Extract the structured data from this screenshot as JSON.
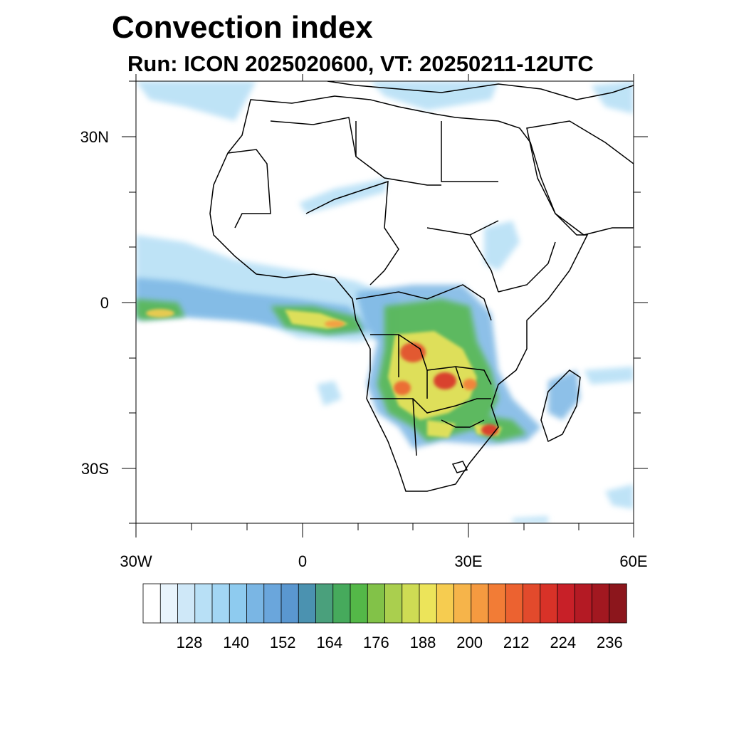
{
  "title": "Convection index",
  "subtitle": "Run: ICON 2025020600,  VT: 20250211-12UTC",
  "axes": {
    "y_ticks": [
      {
        "value": 30,
        "label": "30N"
      },
      {
        "value": 0,
        "label": "0"
      },
      {
        "value": -30,
        "label": "30S"
      }
    ],
    "x_ticks": [
      {
        "value": -30,
        "label": "30W"
      },
      {
        "value": 0,
        "label": "0"
      },
      {
        "value": 30,
        "label": "30E"
      },
      {
        "value": 60,
        "label": "60E"
      }
    ],
    "lon_range": [
      -30,
      60
    ],
    "lat_range": [
      -40,
      40
    ]
  },
  "colorbar": {
    "labels": [
      "128",
      "140",
      "152",
      "164",
      "176",
      "188",
      "200",
      "212",
      "224",
      "236"
    ],
    "colors": [
      "#ffffff",
      "#e8f4fc",
      "#cfe8f8",
      "#b8e0f6",
      "#a2d6f4",
      "#8ecbef",
      "#7ab6e4",
      "#6aa6dc",
      "#5a97d0",
      "#4b92b0",
      "#4aa07c",
      "#46aa5c",
      "#54b848",
      "#82c248",
      "#aacf4e",
      "#cedc54",
      "#ece45a",
      "#f6cc50",
      "#f6b44a",
      "#f59a40",
      "#f27c36",
      "#ec6230",
      "#e24a2c",
      "#d83228",
      "#c82028",
      "#b41a24",
      "#a21820",
      "#8c161c"
    ]
  },
  "map_data": {
    "type": "filled-contour map",
    "field": "Convection index",
    "region": "Africa",
    "max_regions": [
      {
        "name": "Angola / Zambia interior",
        "level": "224-236"
      },
      {
        "name": "Gulf of Guinea band",
        "level": "176-200"
      },
      {
        "name": "Mozambique channel coast",
        "level": "200-224"
      }
    ]
  }
}
